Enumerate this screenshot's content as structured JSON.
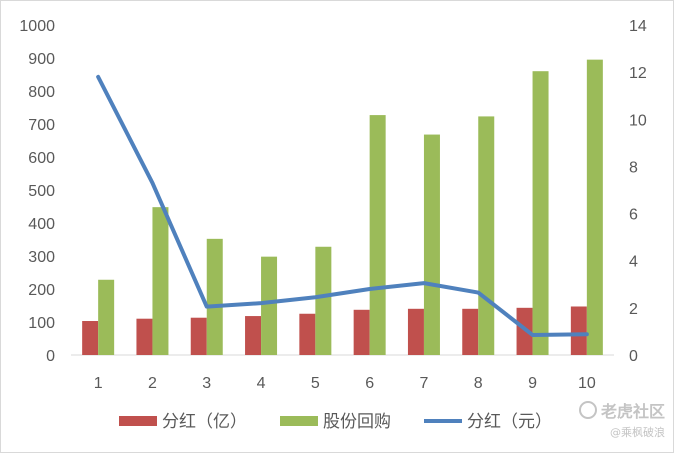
{
  "chart_data": {
    "type": "bar",
    "categories": [
      "1",
      "2",
      "3",
      "4",
      "5",
      "6",
      "7",
      "8",
      "9",
      "10"
    ],
    "series": [
      {
        "name": "分红（亿）",
        "kind": "bar",
        "axis": "left",
        "color": "#c0504d",
        "values": [
          103,
          110,
          113,
          118,
          125,
          137,
          140,
          140,
          143,
          147
        ]
      },
      {
        "name": "股份回购",
        "kind": "bar",
        "axis": "left",
        "color": "#9bbb59",
        "values": [
          228,
          448,
          352,
          298,
          328,
          727,
          668,
          723,
          860,
          895
        ]
      },
      {
        "name": "分红（元）",
        "kind": "line",
        "axis": "right",
        "color": "#4f81bd",
        "values": [
          11.8,
          7.3,
          2.05,
          2.2,
          2.45,
          2.8,
          3.05,
          2.65,
          0.85,
          0.88
        ]
      }
    ],
    "y_left": {
      "min": 0,
      "max": 1000,
      "ticks": [
        "0",
        "100",
        "200",
        "300",
        "400",
        "500",
        "600",
        "700",
        "800",
        "900",
        "1000"
      ]
    },
    "y_right": {
      "min": 0,
      "max": 14,
      "ticks": [
        "0",
        "2",
        "4",
        "6",
        "8",
        "10",
        "12",
        "14"
      ]
    },
    "grid": false,
    "legend_position": "bottom"
  },
  "watermark": {
    "brand": "老虎社区",
    "user": "@乘枫破浪"
  }
}
